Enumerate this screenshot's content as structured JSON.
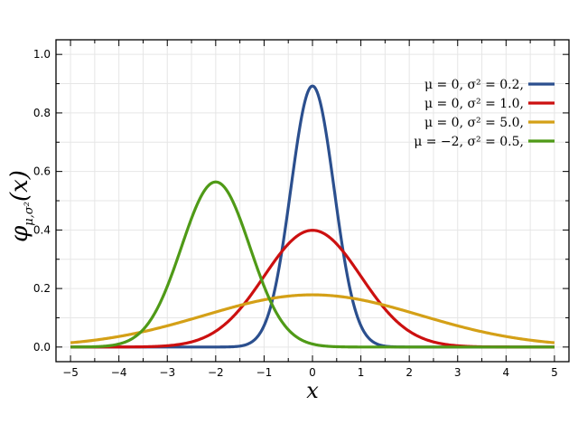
{
  "chart_data": {
    "type": "line",
    "xlabel": "x",
    "ylabel": "φμ,σ²(x)",
    "ylabel_main": "φ",
    "ylabel_sub": "μ,σ²",
    "ylabel_arg": "(x)",
    "xlim": [
      -5.3,
      5.3
    ],
    "ylim": [
      -0.05,
      1.05
    ],
    "xticks": [
      -5,
      -4,
      -3,
      -2,
      -1,
      0,
      1,
      2,
      3,
      4,
      5
    ],
    "xtick_labels": [
      "−5",
      "−4",
      "−3",
      "−2",
      "−1",
      "0",
      "1",
      "2",
      "3",
      "4",
      "5"
    ],
    "yticks": [
      0.0,
      0.2,
      0.4,
      0.6,
      0.8,
      1.0
    ],
    "ytick_labels": [
      "0.0",
      "0.2",
      "0.4",
      "0.6",
      "0.8",
      "1.0"
    ],
    "grid": true,
    "legend_position": "top-right",
    "series": [
      {
        "name": "μ = 0,   σ² = 0.2,",
        "mu": 0,
        "variance": 0.2,
        "color": "#2b4f8e"
      },
      {
        "name": "μ = 0,   σ² = 1.0,",
        "mu": 0,
        "variance": 1.0,
        "color": "#cc1010"
      },
      {
        "name": "μ = 0,   σ² = 5.0,",
        "mu": 0,
        "variance": 5.0,
        "color": "#d4a017"
      },
      {
        "name": "μ = −2,  σ² = 0.5,",
        "mu": -2,
        "variance": 0.5,
        "color": "#4f9a17"
      }
    ]
  }
}
